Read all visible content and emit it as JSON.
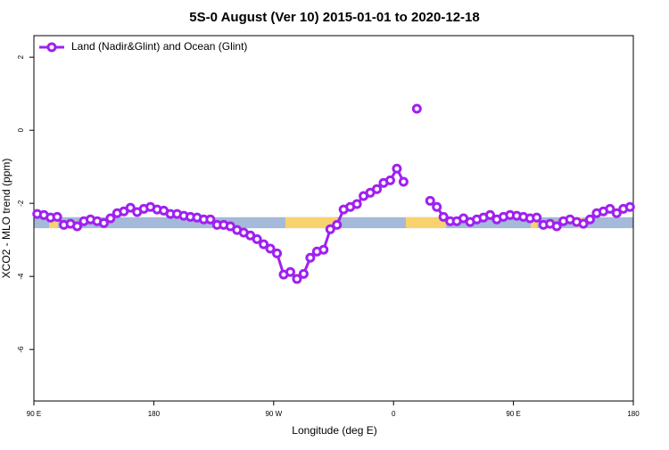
{
  "chart_data": {
    "type": "line",
    "title": "5S-0 August (Ver 10)   2015-01-01 to 2020-12-18",
    "x_label": "Longitude (deg E)",
    "y_label": "XCO2 - MLO trend (ppm)",
    "xlim": [
      90,
      540
    ],
    "ylim": [
      -7.41,
      2.59
    ],
    "xticks": [
      {
        "value": 90,
        "label": "90 E"
      },
      180,
      {
        "value": 270,
        "label": "90 W"
      },
      {
        "value": 360,
        "label": "0"
      },
      {
        "value": 450,
        "label": "90 E"
      },
      {
        "value": 540,
        "label": "180"
      }
    ],
    "yticks": [
      2,
      0,
      -2,
      -4,
      -6
    ],
    "legend_position": "top-left",
    "land_ocean_strip": {
      "ylim": [
        -2.68,
        -2.38
      ],
      "ocean_color": "#a5b9d8",
      "land_color": "#f7d26e",
      "land": [
        [
          101.4,
          108.1
        ],
        [
          278.8,
          317.7
        ],
        [
          369.2,
          399.4
        ],
        [
          463,
          468
        ],
        [
          496,
          503
        ]
      ]
    },
    "x": [
      92.5,
      97.5,
      102.5,
      107.5,
      112.5,
      117.5,
      122.5,
      127.5,
      132.5,
      137.5,
      142.5,
      147.5,
      152.5,
      157.5,
      162.5,
      167.5,
      172.5,
      177.5,
      182.5,
      187.5,
      192.5,
      197.5,
      202.5,
      207.5,
      212.5,
      217.5,
      222.5,
      227.5,
      232.5,
      237.5,
      242.5,
      247.5,
      252.5,
      257.5,
      262.5,
      267.5,
      272.5,
      277.5,
      282.5,
      287.5,
      292.5,
      297.5,
      302.5,
      307.5,
      312.5,
      317.5,
      322.5,
      327.5,
      332.5,
      337.5,
      342.5,
      347.5,
      352.5,
      357.5,
      362.5,
      367.5,
      372.5,
      377.5,
      382.5,
      387.5,
      392.5,
      397.5,
      402.5,
      407.5,
      412.5,
      417.5,
      422.5,
      427.5,
      432.5,
      437.5,
      442.5,
      447.5,
      452.5,
      457.5,
      462.5,
      467.5,
      472.5,
      477.5,
      482.5,
      487.5,
      492.5,
      497.5,
      502.5,
      507.5,
      512.5,
      517.5,
      522.5,
      527.5,
      532.5,
      537.5
    ],
    "series": [
      {
        "name": "Land (Nadir&Glint) and Ocean (Glint)",
        "color": "#a020f0",
        "values": [
          -2.29,
          -2.32,
          -2.39,
          -2.37,
          -2.59,
          -2.56,
          -2.63,
          -2.49,
          -2.44,
          -2.49,
          -2.54,
          -2.41,
          -2.27,
          -2.22,
          -2.12,
          -2.24,
          -2.15,
          -2.1,
          -2.17,
          -2.2,
          -2.29,
          -2.29,
          -2.34,
          -2.37,
          -2.39,
          -2.44,
          -2.44,
          -2.59,
          -2.59,
          -2.63,
          -2.73,
          -2.8,
          -2.88,
          -2.98,
          -3.12,
          -3.24,
          -3.37,
          -3.95,
          -3.88,
          -4.07,
          -3.93,
          -3.49,
          -3.32,
          -3.27,
          -2.71,
          -2.59,
          -2.17,
          -2.1,
          -2.02,
          -1.8,
          -1.71,
          -1.61,
          -1.44,
          -1.37,
          -1.05,
          -1.41,
          null,
          0.59,
          null,
          -1.93,
          -2.1,
          -2.37,
          -2.49,
          -2.49,
          -2.41,
          -2.51,
          -2.44,
          -2.39,
          -2.32,
          -2.44,
          -2.37,
          -2.32,
          -2.34,
          -2.37,
          -2.41,
          -2.39,
          -2.59,
          -2.56,
          -2.63,
          -2.49,
          -2.44,
          -2.51,
          -2.56,
          -2.44,
          -2.27,
          -2.22,
          -2.15,
          -2.27,
          -2.15,
          -2.1
        ]
      }
    ]
  }
}
